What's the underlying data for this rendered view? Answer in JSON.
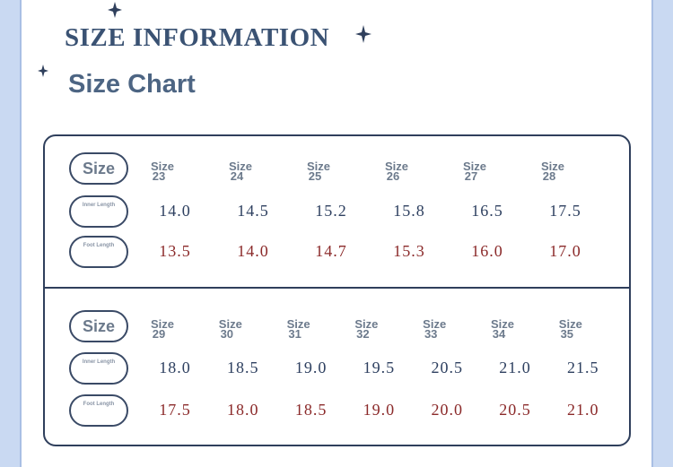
{
  "header": {
    "title": "SIZE INFORMATION",
    "subtitle": "Size Chart"
  },
  "size_word": "Size",
  "panels": [
    {
      "row_labels": [
        "Size",
        "Inner Length",
        "Foot Length"
      ],
      "sizes": [
        "23",
        "24",
        "25",
        "26",
        "27",
        "28"
      ],
      "inner_length": [
        "14.0",
        "14.5",
        "15.2",
        "15.8",
        "16.5",
        "17.5"
      ],
      "foot_length": [
        "13.5",
        "14.0",
        "14.7",
        "15.3",
        "16.0",
        "17.0"
      ]
    },
    {
      "row_labels": [
        "Size",
        "Inner Length",
        "Foot Length"
      ],
      "sizes": [
        "29",
        "30",
        "31",
        "32",
        "33",
        "34",
        "35"
      ],
      "inner_length": [
        "18.0",
        "18.5",
        "19.0",
        "19.5",
        "20.5",
        "21.0",
        "21.5"
      ],
      "foot_length": [
        "17.5",
        "18.0",
        "18.5",
        "19.0",
        "20.0",
        "20.5",
        "21.0"
      ]
    }
  ]
}
